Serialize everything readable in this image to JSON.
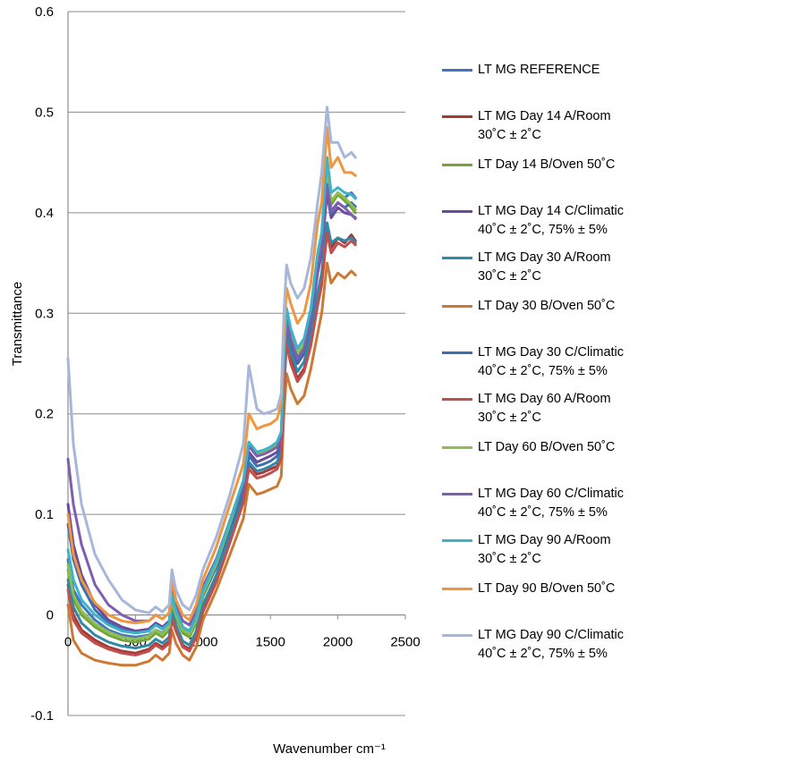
{
  "chart_data": {
    "type": "line",
    "title": "",
    "xlabel": "Wavenumber cm⁻¹",
    "ylabel": "Transmittance",
    "xlim": [
      0,
      2500
    ],
    "ylim": [
      -0.1,
      0.6
    ],
    "xticks": [
      "0",
      "500",
      "1000",
      "1500",
      "2000",
      "2500"
    ],
    "yticks": [
      "-0.1",
      "0",
      "0.1",
      "0.2",
      "0.3",
      "0.4",
      "0.5",
      "0.6"
    ],
    "grid": "horizontal",
    "legend_position": "right",
    "series": [
      {
        "name": "LT MG REFERENCE",
        "color": "#4472C4",
        "x": [
          0,
          40,
          100,
          200,
          300,
          400,
          500,
          600,
          650,
          700,
          750,
          770,
          800,
          850,
          900,
          950,
          1000,
          1100,
          1200,
          1250,
          1300,
          1340,
          1400,
          1450,
          1500,
          1550,
          1580,
          1600,
          1620,
          1650,
          1700,
          1750,
          1800,
          1850,
          1880,
          1920,
          1950,
          2000,
          2050,
          2100,
          2130
        ],
        "y": [
          0.055,
          0.025,
          0.01,
          -0.005,
          -0.015,
          -0.02,
          -0.022,
          -0.02,
          -0.015,
          -0.018,
          -0.012,
          0.015,
          0.0,
          -0.015,
          -0.02,
          -0.005,
          0.02,
          0.05,
          0.09,
          0.11,
          0.13,
          0.17,
          0.16,
          0.162,
          0.165,
          0.17,
          0.18,
          0.25,
          0.3,
          0.28,
          0.26,
          0.27,
          0.3,
          0.35,
          0.37,
          0.43,
          0.41,
          0.42,
          0.415,
          0.42,
          0.415
        ]
      },
      {
        "name": "LT MG  Day 14 A/Room\n30˚C ± 2˚C",
        "color": "#A33B3B",
        "x": [
          0,
          40,
          100,
          200,
          300,
          400,
          500,
          600,
          650,
          700,
          750,
          770,
          800,
          850,
          900,
          950,
          1000,
          1100,
          1200,
          1250,
          1300,
          1340,
          1400,
          1450,
          1500,
          1550,
          1580,
          1600,
          1620,
          1650,
          1700,
          1750,
          1800,
          1850,
          1880,
          1920,
          1950,
          2000,
          2050,
          2100,
          2130
        ],
        "y": [
          0.03,
          0.0,
          -0.015,
          -0.025,
          -0.032,
          -0.036,
          -0.038,
          -0.034,
          -0.028,
          -0.032,
          -0.026,
          0.0,
          -0.014,
          -0.03,
          -0.034,
          -0.02,
          0.005,
          0.035,
          0.075,
          0.095,
          0.115,
          0.15,
          0.14,
          0.142,
          0.145,
          0.148,
          0.16,
          0.23,
          0.275,
          0.255,
          0.235,
          0.245,
          0.27,
          0.31,
          0.33,
          0.385,
          0.365,
          0.375,
          0.37,
          0.378,
          0.372
        ]
      },
      {
        "name": "LT Day 14 B/Oven 50˚C",
        "color": "#77A33B",
        "x": [
          0,
          40,
          100,
          200,
          300,
          400,
          500,
          600,
          650,
          700,
          750,
          770,
          800,
          850,
          900,
          950,
          1000,
          1100,
          1200,
          1250,
          1300,
          1340,
          1400,
          1450,
          1500,
          1550,
          1580,
          1600,
          1620,
          1650,
          1700,
          1750,
          1800,
          1850,
          1880,
          1920,
          1950,
          2000,
          2050,
          2100,
          2130
        ],
        "y": [
          0.045,
          0.015,
          0.0,
          -0.012,
          -0.02,
          -0.025,
          -0.027,
          -0.024,
          -0.018,
          -0.022,
          -0.015,
          0.012,
          -0.003,
          -0.018,
          -0.022,
          -0.008,
          0.018,
          0.048,
          0.088,
          0.108,
          0.128,
          0.168,
          0.158,
          0.16,
          0.163,
          0.168,
          0.178,
          0.248,
          0.298,
          0.278,
          0.258,
          0.268,
          0.298,
          0.348,
          0.368,
          0.432,
          0.408,
          0.418,
          0.412,
          0.405,
          0.4
        ]
      },
      {
        "name": "LT MG  Day 14 C/Climatic\n40˚C ± 2˚C, 75% ± 5%",
        "color": "#6A4A9C",
        "x": [
          0,
          40,
          100,
          200,
          300,
          400,
          500,
          600,
          650,
          700,
          750,
          770,
          800,
          850,
          900,
          950,
          1000,
          1100,
          1200,
          1250,
          1300,
          1340,
          1400,
          1450,
          1500,
          1550,
          1580,
          1600,
          1620,
          1650,
          1700,
          1750,
          1800,
          1850,
          1880,
          1920,
          1950,
          2000,
          2050,
          2100,
          2130
        ],
        "y": [
          0.11,
          0.07,
          0.04,
          0.01,
          -0.005,
          -0.012,
          -0.016,
          -0.014,
          -0.008,
          -0.012,
          -0.006,
          0.02,
          0.005,
          -0.012,
          -0.016,
          -0.002,
          0.022,
          0.05,
          0.088,
          0.106,
          0.124,
          0.162,
          0.152,
          0.155,
          0.158,
          0.162,
          0.172,
          0.24,
          0.29,
          0.27,
          0.25,
          0.26,
          0.29,
          0.34,
          0.36,
          0.42,
          0.395,
          0.405,
          0.4,
          0.398,
          0.395
        ]
      },
      {
        "name": "LT MG  Day 30 A/Room\n30˚C ± 2˚C",
        "color": "#2E8AA8",
        "x": [
          0,
          40,
          100,
          200,
          300,
          400,
          500,
          600,
          650,
          700,
          750,
          770,
          800,
          850,
          900,
          950,
          1000,
          1100,
          1200,
          1250,
          1300,
          1340,
          1400,
          1450,
          1500,
          1550,
          1580,
          1600,
          1620,
          1650,
          1700,
          1750,
          1800,
          1850,
          1880,
          1920,
          1950,
          2000,
          2050,
          2100,
          2130
        ],
        "y": [
          0.035,
          0.008,
          -0.008,
          -0.02,
          -0.027,
          -0.031,
          -0.033,
          -0.03,
          -0.024,
          -0.028,
          -0.022,
          0.004,
          -0.01,
          -0.026,
          -0.03,
          -0.016,
          0.01,
          0.04,
          0.08,
          0.1,
          0.12,
          0.152,
          0.143,
          0.145,
          0.148,
          0.152,
          0.164,
          0.235,
          0.282,
          0.262,
          0.242,
          0.252,
          0.278,
          0.32,
          0.34,
          0.39,
          0.37,
          0.375,
          0.372,
          0.375,
          0.37
        ]
      },
      {
        "name": "LT Day 30 B/Oven 50˚C",
        "color": "#CC7A33",
        "x": [
          0,
          40,
          100,
          200,
          300,
          400,
          500,
          600,
          650,
          700,
          750,
          770,
          800,
          850,
          900,
          950,
          1000,
          1100,
          1200,
          1250,
          1300,
          1340,
          1400,
          1450,
          1500,
          1550,
          1580,
          1600,
          1620,
          1650,
          1700,
          1750,
          1800,
          1850,
          1880,
          1920,
          1950,
          2000,
          2050,
          2100,
          2130
        ],
        "y": [
          0.01,
          -0.025,
          -0.038,
          -0.045,
          -0.048,
          -0.05,
          -0.05,
          -0.046,
          -0.04,
          -0.045,
          -0.038,
          -0.015,
          -0.028,
          -0.04,
          -0.045,
          -0.032,
          -0.005,
          0.025,
          0.06,
          0.078,
          0.096,
          0.13,
          0.12,
          0.122,
          0.125,
          0.128,
          0.138,
          0.2,
          0.24,
          0.225,
          0.21,
          0.218,
          0.245,
          0.28,
          0.3,
          0.35,
          0.33,
          0.34,
          0.335,
          0.342,
          0.338
        ]
      },
      {
        "name": "LT MG  Day 30 C/Climatic\n40˚C ± 2˚C, 75% ± 5%",
        "color": "#3D6FB0",
        "x": [
          0,
          40,
          100,
          200,
          300,
          400,
          500,
          600,
          650,
          700,
          750,
          770,
          800,
          850,
          900,
          950,
          1000,
          1100,
          1200,
          1250,
          1300,
          1340,
          1400,
          1450,
          1500,
          1550,
          1580,
          1600,
          1620,
          1650,
          1700,
          1750,
          1800,
          1850,
          1880,
          1920,
          1950,
          2000,
          2050,
          2100,
          2130
        ],
        "y": [
          0.09,
          0.055,
          0.03,
          0.005,
          -0.008,
          -0.015,
          -0.018,
          -0.016,
          -0.01,
          -0.014,
          -0.008,
          0.018,
          0.003,
          -0.013,
          -0.018,
          -0.004,
          0.02,
          0.048,
          0.086,
          0.104,
          0.122,
          0.158,
          0.148,
          0.15,
          0.153,
          0.158,
          0.168,
          0.242,
          0.292,
          0.272,
          0.252,
          0.262,
          0.292,
          0.345,
          0.365,
          0.425,
          0.4,
          0.41,
          0.405,
          0.41,
          0.406
        ]
      },
      {
        "name": "LT MG  Day 60 A/Room\n30˚C ± 2˚C",
        "color": "#C0504D",
        "x": [
          0,
          40,
          100,
          200,
          300,
          400,
          500,
          600,
          650,
          700,
          750,
          770,
          800,
          850,
          900,
          950,
          1000,
          1100,
          1200,
          1250,
          1300,
          1340,
          1400,
          1450,
          1500,
          1550,
          1580,
          1600,
          1620,
          1650,
          1700,
          1750,
          1800,
          1850,
          1880,
          1920,
          1950,
          2000,
          2050,
          2100,
          2130
        ],
        "y": [
          0.025,
          -0.005,
          -0.018,
          -0.028,
          -0.034,
          -0.038,
          -0.04,
          -0.036,
          -0.03,
          -0.034,
          -0.028,
          -0.004,
          -0.016,
          -0.032,
          -0.036,
          -0.022,
          0.003,
          0.033,
          0.072,
          0.092,
          0.112,
          0.145,
          0.136,
          0.138,
          0.141,
          0.145,
          0.156,
          0.225,
          0.27,
          0.25,
          0.232,
          0.242,
          0.268,
          0.308,
          0.328,
          0.38,
          0.36,
          0.37,
          0.366,
          0.372,
          0.368
        ]
      },
      {
        "name": "LT Day 60 B/Oven 50˚C",
        "color": "#8DBF50",
        "x": [
          0,
          40,
          100,
          200,
          300,
          400,
          500,
          600,
          650,
          700,
          750,
          770,
          800,
          850,
          900,
          950,
          1000,
          1100,
          1200,
          1250,
          1300,
          1340,
          1400,
          1450,
          1500,
          1550,
          1580,
          1600,
          1620,
          1650,
          1700,
          1750,
          1800,
          1850,
          1880,
          1920,
          1950,
          2000,
          2050,
          2100,
          2130
        ],
        "y": [
          0.05,
          0.02,
          0.004,
          -0.009,
          -0.017,
          -0.022,
          -0.024,
          -0.021,
          -0.015,
          -0.019,
          -0.012,
          0.015,
          0.0,
          -0.015,
          -0.019,
          -0.005,
          0.021,
          0.051,
          0.091,
          0.111,
          0.131,
          0.17,
          0.16,
          0.162,
          0.165,
          0.17,
          0.18,
          0.25,
          0.3,
          0.28,
          0.26,
          0.27,
          0.3,
          0.35,
          0.37,
          0.44,
          0.412,
          0.42,
          0.415,
          0.408,
          0.403
        ]
      },
      {
        "name": "LT MG  Day 60 C/Climatic\n40˚C ± 2˚C, 75% ± 5%",
        "color": "#7E5EAE",
        "x": [
          0,
          40,
          100,
          200,
          300,
          400,
          500,
          600,
          650,
          700,
          750,
          770,
          800,
          850,
          900,
          950,
          1000,
          1100,
          1200,
          1250,
          1300,
          1340,
          1400,
          1450,
          1500,
          1550,
          1580,
          1600,
          1620,
          1650,
          1700,
          1750,
          1800,
          1850,
          1880,
          1920,
          1950,
          2000,
          2050,
          2100,
          2130
        ],
        "y": [
          0.155,
          0.11,
          0.07,
          0.03,
          0.01,
          0.0,
          -0.006,
          -0.006,
          0.0,
          -0.004,
          0.002,
          0.026,
          0.01,
          -0.006,
          -0.01,
          0.004,
          0.028,
          0.056,
          0.094,
          0.112,
          0.13,
          0.168,
          0.158,
          0.16,
          0.163,
          0.167,
          0.177,
          0.245,
          0.295,
          0.275,
          0.255,
          0.265,
          0.295,
          0.345,
          0.365,
          0.428,
          0.402,
          0.41,
          0.405,
          0.398,
          0.394
        ]
      },
      {
        "name": "LT MG  Day 90 A/Room\n30˚C ± 2˚C",
        "color": "#3DB3C8",
        "x": [
          0,
          40,
          100,
          200,
          300,
          400,
          500,
          600,
          650,
          700,
          750,
          770,
          800,
          850,
          900,
          950,
          1000,
          1100,
          1200,
          1250,
          1300,
          1340,
          1400,
          1450,
          1500,
          1550,
          1580,
          1600,
          1620,
          1650,
          1700,
          1750,
          1800,
          1850,
          1880,
          1920,
          1950,
          2000,
          2050,
          2100,
          2130
        ],
        "y": [
          0.065,
          0.035,
          0.015,
          0.0,
          -0.01,
          -0.016,
          -0.018,
          -0.016,
          -0.01,
          -0.014,
          -0.008,
          0.02,
          0.004,
          -0.012,
          -0.016,
          -0.002,
          0.024,
          0.054,
          0.094,
          0.114,
          0.134,
          0.172,
          0.162,
          0.164,
          0.167,
          0.172,
          0.182,
          0.255,
          0.305,
          0.285,
          0.265,
          0.275,
          0.305,
          0.36,
          0.38,
          0.455,
          0.42,
          0.425,
          0.42,
          0.418,
          0.414
        ]
      },
      {
        "name": "LT Day 90 B/Oven 50˚C",
        "color": "#F0963F",
        "x": [
          0,
          40,
          100,
          200,
          300,
          400,
          500,
          600,
          650,
          700,
          750,
          770,
          800,
          850,
          900,
          950,
          1000,
          1100,
          1200,
          1250,
          1300,
          1340,
          1400,
          1450,
          1500,
          1550,
          1580,
          1600,
          1620,
          1650,
          1700,
          1750,
          1800,
          1850,
          1880,
          1920,
          1950,
          2000,
          2050,
          2100,
          2130
        ],
        "y": [
          0.1,
          0.06,
          0.035,
          0.012,
          0.0,
          -0.006,
          -0.008,
          -0.006,
          0.0,
          -0.004,
          0.002,
          0.035,
          0.015,
          0.0,
          -0.005,
          0.01,
          0.035,
          0.068,
          0.11,
          0.13,
          0.15,
          0.2,
          0.185,
          0.188,
          0.19,
          0.195,
          0.21,
          0.28,
          0.325,
          0.31,
          0.29,
          0.3,
          0.33,
          0.39,
          0.41,
          0.485,
          0.445,
          0.455,
          0.44,
          0.44,
          0.437
        ]
      },
      {
        "name": "LT MG  Day 90 C/Climatic\n40˚C ± 2˚C, 75% ± 5%",
        "color": "#A7B7DA",
        "x": [
          0,
          40,
          100,
          200,
          300,
          400,
          500,
          600,
          650,
          700,
          750,
          770,
          800,
          850,
          900,
          950,
          1000,
          1100,
          1200,
          1250,
          1300,
          1340,
          1400,
          1450,
          1500,
          1550,
          1580,
          1600,
          1620,
          1650,
          1700,
          1750,
          1800,
          1850,
          1880,
          1920,
          1950,
          2000,
          2050,
          2100,
          2130
        ],
        "y": [
          0.255,
          0.17,
          0.11,
          0.06,
          0.035,
          0.015,
          0.005,
          0.002,
          0.008,
          0.003,
          0.01,
          0.045,
          0.025,
          0.01,
          0.005,
          0.02,
          0.045,
          0.078,
          0.12,
          0.145,
          0.17,
          0.248,
          0.205,
          0.2,
          0.202,
          0.205,
          0.22,
          0.3,
          0.348,
          0.33,
          0.315,
          0.325,
          0.355,
          0.41,
          0.44,
          0.505,
          0.47,
          0.47,
          0.455,
          0.46,
          0.455
        ]
      }
    ]
  }
}
